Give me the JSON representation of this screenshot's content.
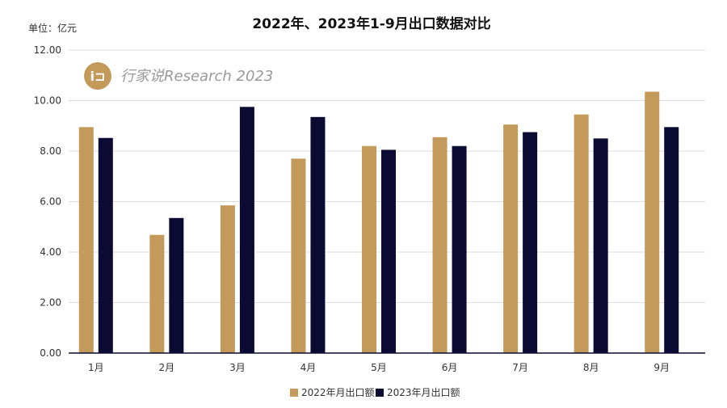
{
  "chart_data": {
    "type": "bar",
    "title": "2022年、2023年1-9月出口数据对比",
    "unit_label": "单位：亿元",
    "categories": [
      "1月",
      "2月",
      "3月",
      "4月",
      "5月",
      "6月",
      "7月",
      "8月",
      "9月"
    ],
    "series": [
      {
        "name": "2022年月出口额",
        "color": "#C49A5A",
        "values": [
          8.95,
          4.68,
          5.85,
          7.7,
          8.2,
          8.55,
          9.05,
          9.45,
          10.35
        ]
      },
      {
        "name": "2023年月出口额",
        "color": "#0B0A33",
        "values": [
          8.52,
          5.35,
          9.75,
          9.35,
          8.05,
          8.2,
          8.75,
          8.5,
          8.95
        ]
      }
    ],
    "ylim": [
      0,
      12
    ],
    "yticks": [
      "0.00",
      "2.00",
      "4.00",
      "6.00",
      "8.00",
      "10.00",
      "12.00"
    ],
    "grid": true,
    "legend_position": "bottom"
  },
  "watermark": {
    "logo_glyph": "i⊐",
    "text": "行家说Research 2023"
  },
  "colors": {
    "gridline": "#dddddd",
    "axis": "#0B0A33",
    "logo_bg": "#C49A5A"
  }
}
